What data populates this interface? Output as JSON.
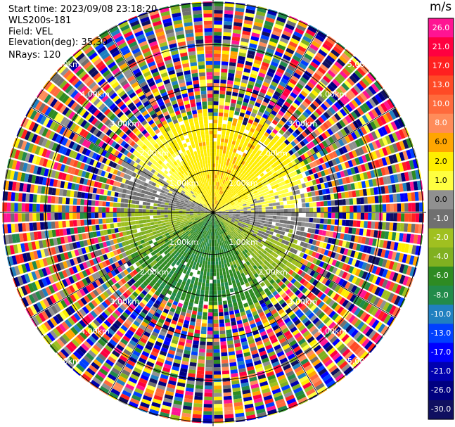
{
  "header": {
    "start_time": "Start time: 2023/09/08 23:18:20",
    "instrument": "WLS200s-181",
    "field": "Field: VEL",
    "elevation": "Elevation(deg): 35.30",
    "nrays": "NRays: 120"
  },
  "colorbar": {
    "unit": "m/s",
    "ticks": [
      "26.0",
      "21.0",
      "17.0",
      "13.0",
      "10.0",
      "8.0",
      "6.0",
      "2.0",
      "1.0",
      "0.0",
      "-1.0",
      "-2.0",
      "-4.0",
      "-6.0",
      "-8.0",
      "-10.0",
      "-13.0",
      "-17.0",
      "-21.0",
      "-26.0",
      "-30.0"
    ],
    "colors": [
      "#ff1493",
      "#ff0040",
      "#ff2020",
      "#ff4a26",
      "#ff6a3c",
      "#ff8c5a",
      "#ffa500",
      "#ffee00",
      "#ffff40",
      "#909090",
      "#707070",
      "#a0c020",
      "#80b020",
      "#2e8b22",
      "#228b4a",
      "#2080c0",
      "#0040ff",
      "#0000ff",
      "#0000b0",
      "#000080",
      "#101060"
    ]
  },
  "range_labels": [
    "1.00km",
    "2.00km",
    "3.00km",
    "4.00km",
    "5.00km"
  ]
}
